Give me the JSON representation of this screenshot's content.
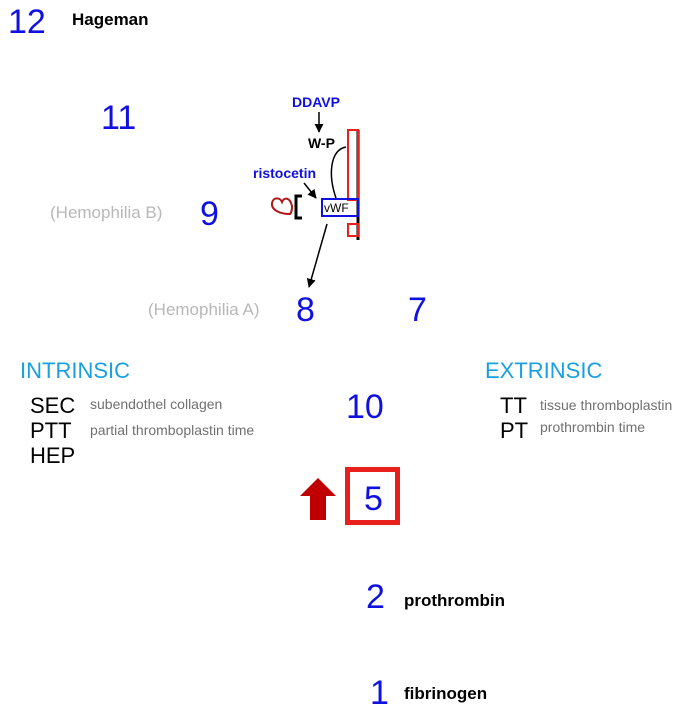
{
  "factors": {
    "f12": "12",
    "f11": "11",
    "f9": "9",
    "f8": "8",
    "f7": "7",
    "f10": "10",
    "f5": "5",
    "f2": "2",
    "f1": "1"
  },
  "names": {
    "hageman": "Hageman",
    "prothrombin": "prothrombin",
    "fibrinogen": "fibrinogen"
  },
  "diseases": {
    "hemophilia_b": "(Hemophilia B)",
    "hemophilia_a": "(Hemophilia A)"
  },
  "vwf_panel": {
    "ddavp": "DDAVP",
    "wp": "W-P",
    "ristocetin": "ristocetin",
    "vwf": "vWF"
  },
  "intrinsic": {
    "title": "INTRINSIC",
    "tests": [
      {
        "abbr": "SEC",
        "desc": "subendothel collagen"
      },
      {
        "abbr": "PTT",
        "desc": "partial thromboplastin time"
      },
      {
        "abbr": "HEP",
        "desc": ""
      }
    ]
  },
  "extrinsic": {
    "title": "EXTRINSIC",
    "tests": [
      {
        "abbr": "TT",
        "desc": "tissue thromboplastin"
      },
      {
        "abbr": "PT",
        "desc": "prothrombin time"
      }
    ]
  },
  "colors": {
    "factor_blue": "#1010e0",
    "pathway_cyan": "#1aa0e0",
    "highlight_red": "#e8201c",
    "arrow_darkred": "#c00000",
    "disease_grey": "#b8b8b8"
  }
}
